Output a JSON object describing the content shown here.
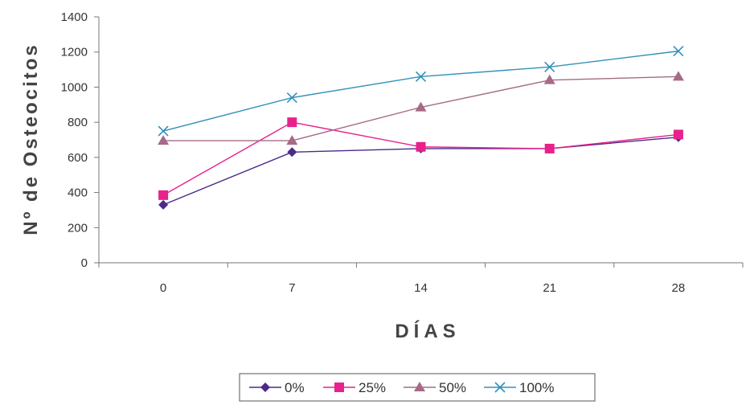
{
  "chart_data": {
    "type": "line",
    "title": "",
    "xlabel": "DÍAS",
    "ylabel": "Nº de Osteocitos",
    "categories": [
      "0",
      "7",
      "14",
      "21",
      "28"
    ],
    "x": [
      0,
      7,
      14,
      21,
      28
    ],
    "ylim": [
      0,
      1400
    ],
    "yticks": [
      0,
      200,
      400,
      600,
      800,
      1000,
      1200,
      1400
    ],
    "grid": false,
    "legend": "bottom",
    "series": [
      {
        "name": "0%",
        "values": [
          330,
          630,
          650,
          650,
          715
        ],
        "color": "#4b2a8a",
        "marker": "diamond"
      },
      {
        "name": "25%",
        "values": [
          385,
          800,
          660,
          650,
          730
        ],
        "color": "#e8218c",
        "marker": "square"
      },
      {
        "name": "50%",
        "values": [
          695,
          695,
          885,
          1040,
          1060
        ],
        "color": "#a66a86",
        "marker": "triangle"
      },
      {
        "name": "100%",
        "values": [
          750,
          940,
          1060,
          1115,
          1205
        ],
        "color": "#3391b8",
        "marker": "x"
      }
    ]
  }
}
